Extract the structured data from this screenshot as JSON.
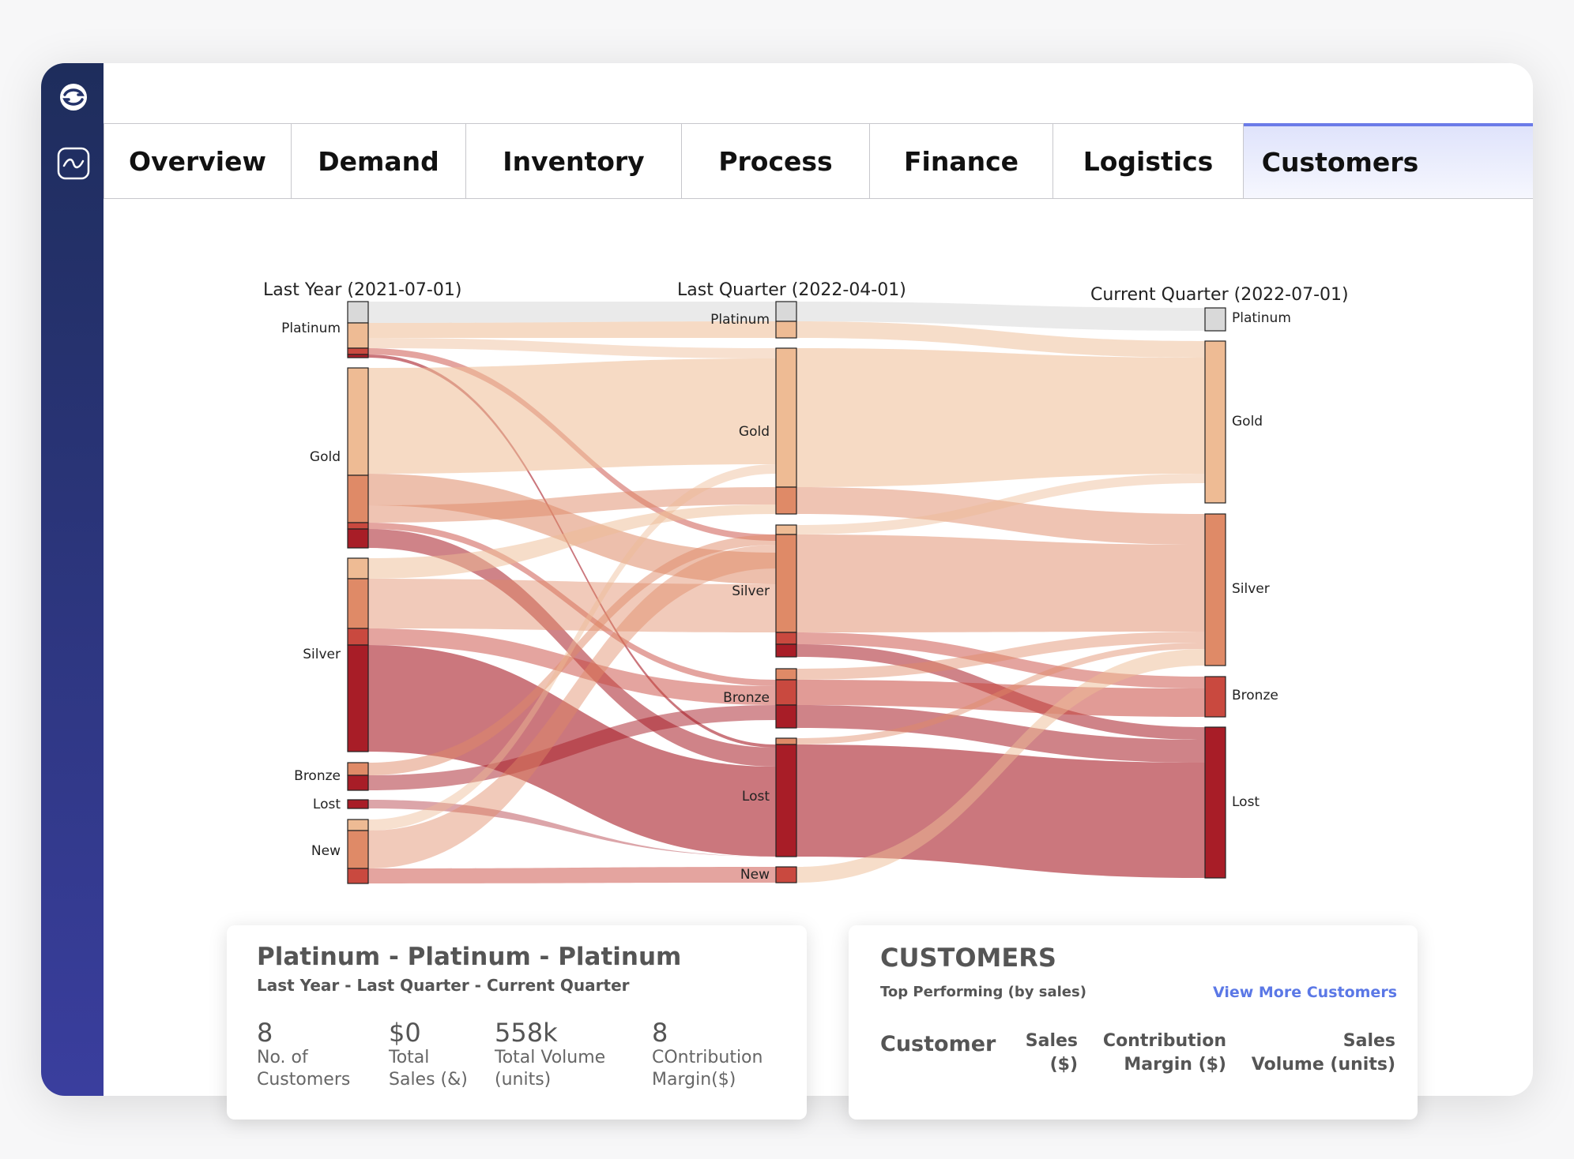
{
  "tabs": [
    "Overview",
    "Demand",
    "Inventory",
    "Process",
    "Finance",
    "Logistics",
    "Customers"
  ],
  "active_tab": "Customers",
  "sankey": {
    "columns": [
      "Last Year (2021-07-01)",
      "Last Quarter (2022-04-01)",
      "Current Quarter (2022-07-01)"
    ],
    "nodes": [
      "Platinum",
      "Gold",
      "Silver",
      "Bronze",
      "Lost",
      "New"
    ],
    "current_nodes": [
      "Platinum",
      "Gold",
      "Silver",
      "Bronze",
      "Lost"
    ],
    "colors": {
      "Platinum": "#d9d9d9",
      "Gold": "#eebb94",
      "Silver": "#df8a67",
      "Bronze": "#c9493f",
      "Lost": "#a81d27",
      "New": "#eebb94"
    }
  },
  "details": {
    "title": "Platinum - Platinum - Platinum",
    "subtitle": "Last Year - Last Quarter - Current Quarter",
    "stats": [
      {
        "value": "8",
        "label": "No. of\nCustomers"
      },
      {
        "value": "$0",
        "label": "Total\nSales (&)"
      },
      {
        "value": "558k",
        "label": "Total Volume\n(units)"
      },
      {
        "value": "8",
        "label": "COntribution\nMargin($)"
      }
    ]
  },
  "customers": {
    "title": "CUSTOMERS",
    "subtitle": "Top Performing (by sales)",
    "link": "View More Customers",
    "columns": [
      "Customer",
      "Sales\n($)",
      "Contribution\nMargin ($)",
      "Sales\nVolume (units)"
    ]
  }
}
